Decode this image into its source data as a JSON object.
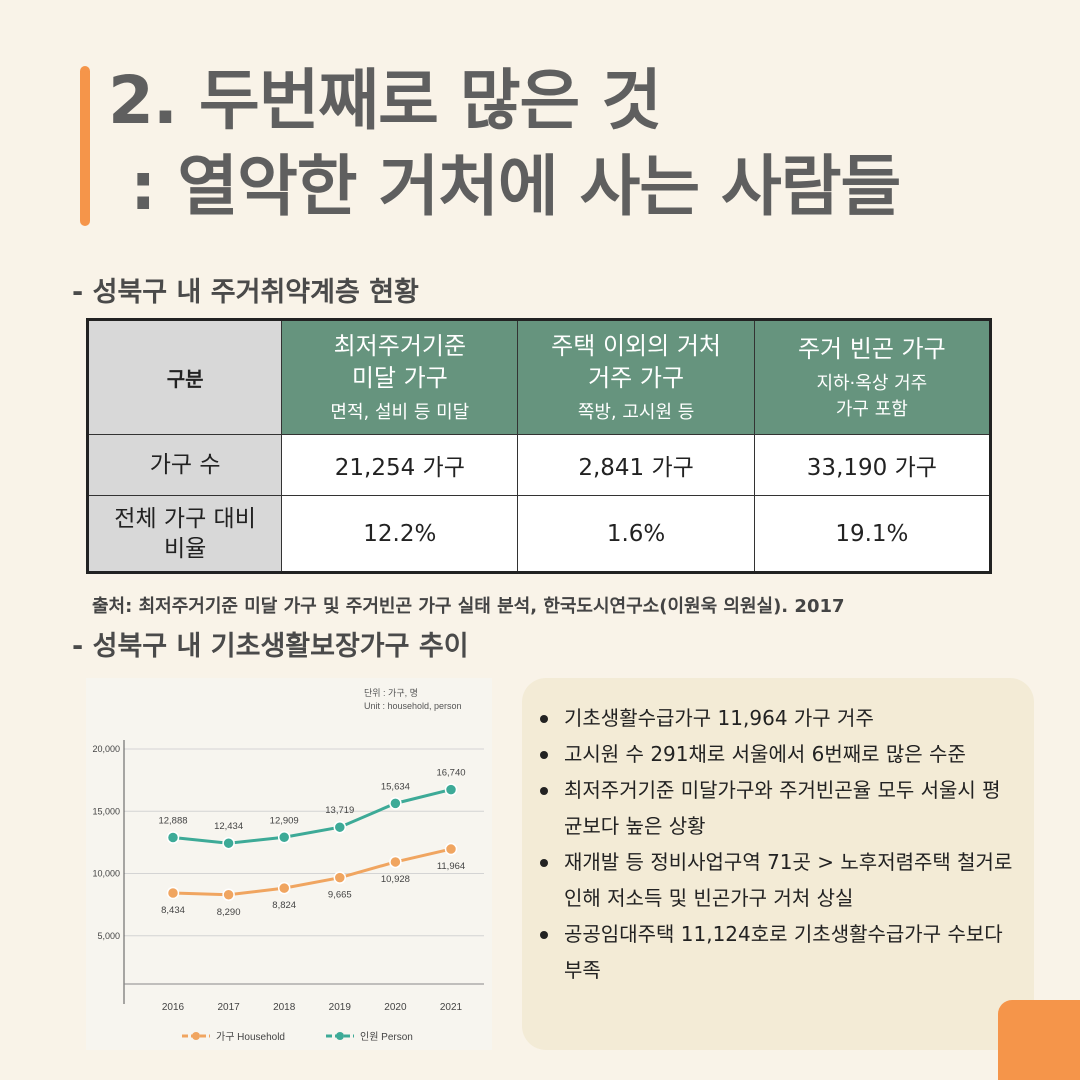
{
  "title": {
    "line1": "2. 두번째로 많은 것",
    "line2": " : 열악한 거처에 사는 사람들"
  },
  "section1": {
    "heading": "- 성북구 내 주거취약계층 현황"
  },
  "table": {
    "corner": "구분",
    "columns": [
      {
        "main": "최저주거기준\n미달 가구",
        "sub": "면적, 설비 등 미달"
      },
      {
        "main": "주택 이외의 거처\n거주 가구",
        "sub": "쪽방, 고시원 등"
      },
      {
        "main": "주거 빈곤 가구",
        "sub": "지하·옥상 거주\n가구 포함"
      }
    ],
    "rows": [
      {
        "label": "가구 수",
        "cells": [
          "21,254 가구",
          "2,841 가구",
          "33,190 가구"
        ]
      },
      {
        "label": "전체 가구 대비\n비율",
        "cells": [
          "12.2%",
          "1.6%",
          "19.1%"
        ]
      }
    ]
  },
  "source": "출처: 최저주거기준 미달 가구 및 주거빈곤 가구 실태 분석, 한국도시연구소(이원욱 의원실). 2017",
  "section2": {
    "heading": "- 성북구 내 기초생활보장가구 추이"
  },
  "chart_data": {
    "type": "line",
    "unit_label": "단위 : 가구, 명",
    "unit_label_en": "Unit : household, person",
    "categories": [
      "2016",
      "2017",
      "2018",
      "2019",
      "2020",
      "2021"
    ],
    "y_ticks": [
      "5,000",
      "10,000",
      "15,000",
      "20,000"
    ],
    "y_tick_values": [
      5000,
      10000,
      15000,
      20000
    ],
    "ylim": [
      0,
      20000
    ],
    "series": [
      {
        "name": "가구 Household",
        "values": [
          8434,
          8290,
          8824,
          9665,
          10928,
          11964
        ],
        "labels": [
          "8,434",
          "8,290",
          "8,824",
          "9,665",
          "10,928",
          "11,964"
        ],
        "color": "#f0a560"
      },
      {
        "name": "인원 Person",
        "values": [
          12888,
          12434,
          12909,
          13719,
          15634,
          16740
        ],
        "labels": [
          "12,888",
          "12,434",
          "12,909",
          "13,719",
          "15,634",
          "16,740"
        ],
        "color": "#3daa97"
      }
    ]
  },
  "bullets": [
    "기초생활수급가구 11,964 가구 거주",
    "고시원 수 291채로 서울에서 6번째로 많은 수준",
    "최저주거기준 미달가구와 주거빈곤율 모두 서울시 평균보다 높은 상황",
    "재개발 등 정비사업구역 71곳 > 노후저렴주택 철거로 인해 저소득 및 빈곤가구 거처 상실",
    "공공임대주택 11,124호로 기초생활수급가구 수보다 부족"
  ],
  "colors": {
    "background": "#f9f3e8",
    "accent": "#f5954a",
    "table_header": "#66947e",
    "table_label": "#d8d8d8",
    "bullet_box": "#f3ebd6"
  }
}
